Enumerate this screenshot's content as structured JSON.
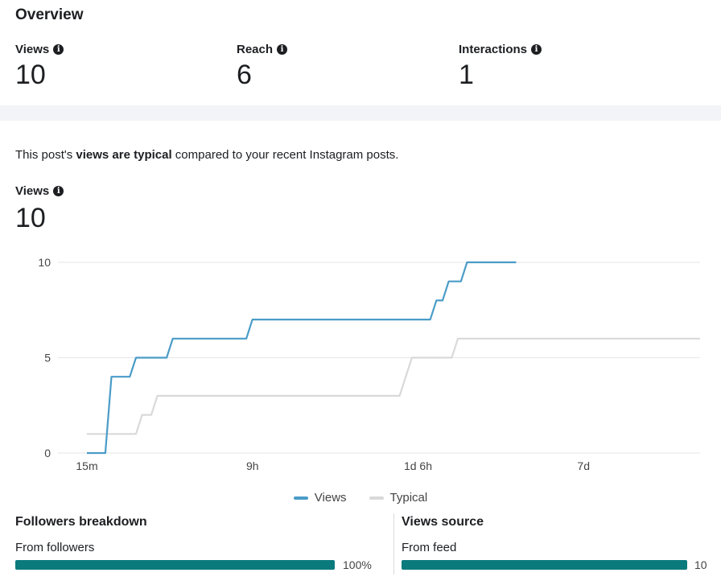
{
  "overview": {
    "title": "Overview",
    "metrics": [
      {
        "label": "Views",
        "value": "10"
      },
      {
        "label": "Reach",
        "value": "6"
      },
      {
        "label": "Interactions",
        "value": "1"
      }
    ]
  },
  "summary": {
    "prefix": "This post's ",
    "emphasis": "views are typical",
    "suffix": " compared to your recent Instagram posts."
  },
  "views_block": {
    "label": "Views",
    "value": "10"
  },
  "chart_data": {
    "type": "line",
    "x_tick_labels": [
      "15m",
      "9h",
      "1d 6h",
      "7d"
    ],
    "y_ticks": [
      0,
      5,
      10
    ],
    "ylim": [
      0,
      10
    ],
    "grid": true,
    "legend_position": "bottom",
    "colors": {
      "Views": "#4a9cc7",
      "Typical": "#d9d9d9"
    },
    "series": [
      {
        "name": "Views",
        "points": [
          [
            0,
            0
          ],
          [
            0.03,
            0
          ],
          [
            0.04,
            4
          ],
          [
            0.07,
            4
          ],
          [
            0.08,
            5
          ],
          [
            0.13,
            5
          ],
          [
            0.14,
            6
          ],
          [
            0.26,
            6
          ],
          [
            0.27,
            7
          ],
          [
            0.56,
            7
          ],
          [
            0.57,
            8
          ],
          [
            0.58,
            8
          ],
          [
            0.59,
            9
          ],
          [
            0.61,
            9
          ],
          [
            0.62,
            10
          ],
          [
            0.7,
            10
          ]
        ]
      },
      {
        "name": "Typical",
        "points": [
          [
            0,
            1
          ],
          [
            0.08,
            1
          ],
          [
            0.09,
            2
          ],
          [
            0.105,
            2
          ],
          [
            0.115,
            3
          ],
          [
            0.51,
            3
          ],
          [
            0.53,
            5
          ],
          [
            0.595,
            5
          ],
          [
            0.605,
            6
          ],
          [
            1.0,
            6
          ]
        ]
      }
    ]
  },
  "legend": [
    {
      "name": "Views",
      "color": "#4a9cc7"
    },
    {
      "name": "Typical",
      "color": "#d9d9d9"
    }
  ],
  "followers_breakdown": {
    "title": "Followers breakdown",
    "row_label": "From followers",
    "value_text": "100%",
    "fraction": 1.0
  },
  "views_source": {
    "title": "Views source",
    "row_label": "From feed",
    "value_text": "10",
    "fraction": 1.0
  },
  "accent_color": "#0a7a7d"
}
